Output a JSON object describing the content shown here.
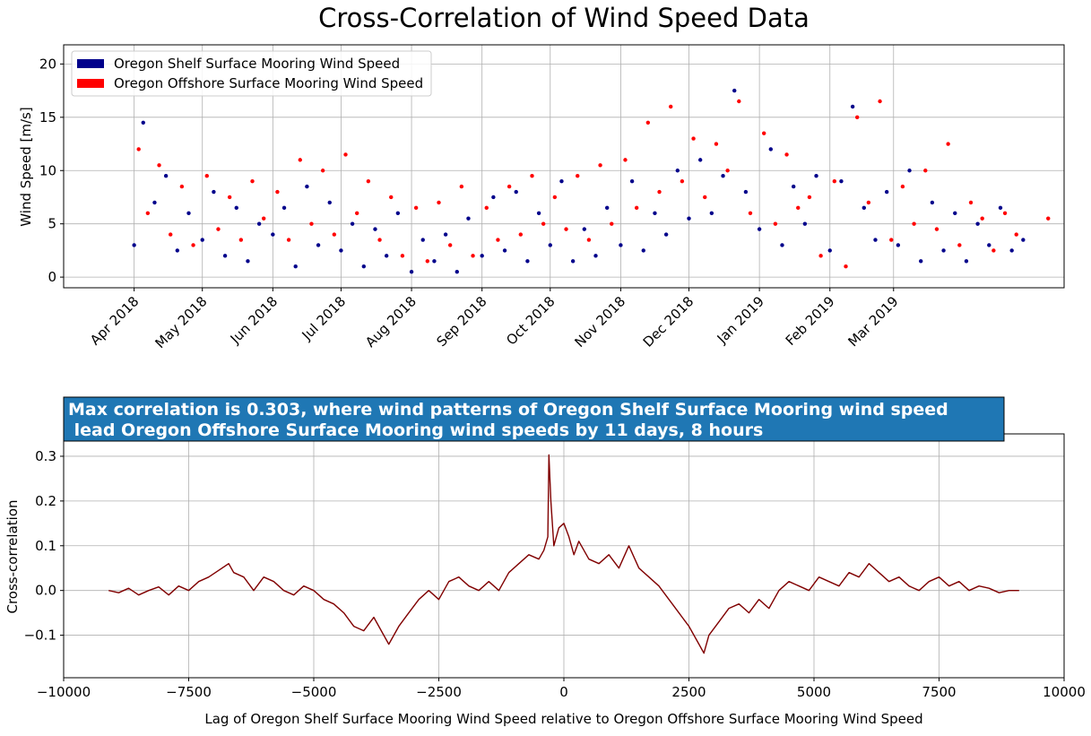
{
  "figure_title": "Cross-Correlation of Wind Speed Data",
  "chart_data": [
    {
      "type": "scatter",
      "title": "",
      "xlabel": "",
      "ylabel": "Wind Speed [m/s]",
      "x_range": [
        "2018-03-01",
        "2019-05-15"
      ],
      "ylim": [
        -1,
        21.8
      ],
      "yticks": [
        0,
        5,
        10,
        15,
        20
      ],
      "xticks": [
        {
          "date": "2018-04-01",
          "label": "Apr 2018"
        },
        {
          "date": "2018-05-01",
          "label": "May 2018"
        },
        {
          "date": "2018-06-01",
          "label": "Jun 2018"
        },
        {
          "date": "2018-07-01",
          "label": "Jul 2018"
        },
        {
          "date": "2018-08-01",
          "label": "Aug 2018"
        },
        {
          "date": "2018-09-01",
          "label": "Sep 2018"
        },
        {
          "date": "2018-10-01",
          "label": "Oct 2018"
        },
        {
          "date": "2018-11-01",
          "label": "Nov 2018"
        },
        {
          "date": "2018-12-01",
          "label": "Dec 2018"
        },
        {
          "date": "2019-01-01",
          "label": "Jan 2019"
        },
        {
          "date": "2019-02-01",
          "label": "Feb 2019"
        },
        {
          "date": "2019-03-01",
          "label": "Mar 2019"
        }
      ],
      "grid": true,
      "legend_position": "top-left",
      "series": [
        {
          "name": "Oregon Shelf Surface Mooring Wind Speed",
          "color": "#00008b",
          "x": [
            "2018-04-01",
            "2018-04-05",
            "2018-04-10",
            "2018-04-15",
            "2018-04-20",
            "2018-04-25",
            "2018-05-01",
            "2018-05-06",
            "2018-05-11",
            "2018-05-16",
            "2018-05-21",
            "2018-05-26",
            "2018-06-01",
            "2018-06-06",
            "2018-06-11",
            "2018-06-16",
            "2018-06-21",
            "2018-06-26",
            "2018-07-01",
            "2018-07-06",
            "2018-07-11",
            "2018-07-16",
            "2018-07-21",
            "2018-07-26",
            "2018-08-01",
            "2018-08-06",
            "2018-08-11",
            "2018-08-16",
            "2018-08-21",
            "2018-08-26",
            "2018-09-01",
            "2018-09-06",
            "2018-09-11",
            "2018-09-16",
            "2018-09-21",
            "2018-09-26",
            "2018-10-01",
            "2018-10-06",
            "2018-10-11",
            "2018-10-16",
            "2018-10-21",
            "2018-10-26",
            "2018-11-01",
            "2018-11-06",
            "2018-11-11",
            "2018-11-16",
            "2018-11-21",
            "2018-11-26",
            "2018-12-01",
            "2018-12-06",
            "2018-12-11",
            "2018-12-16",
            "2018-12-21",
            "2018-12-26",
            "2019-01-01",
            "2019-01-06",
            "2019-01-11",
            "2019-01-16",
            "2019-01-21",
            "2019-01-26",
            "2019-02-01",
            "2019-02-06",
            "2019-02-11",
            "2019-02-16",
            "2019-02-21",
            "2019-02-26",
            "2019-03-03",
            "2019-03-08",
            "2019-03-13",
            "2019-03-18",
            "2019-03-23",
            "2019-03-28",
            "2019-04-02",
            "2019-04-07",
            "2019-04-12",
            "2019-04-17",
            "2019-04-22",
            "2019-04-27"
          ],
          "y": [
            3.0,
            14.5,
            7.0,
            9.5,
            2.5,
            6.0,
            3.5,
            8.0,
            2.0,
            6.5,
            1.5,
            5.0,
            4.0,
            6.5,
            1.0,
            8.5,
            3.0,
            7.0,
            2.5,
            5.0,
            1.0,
            4.5,
            2.0,
            6.0,
            0.5,
            3.5,
            1.5,
            4.0,
            0.5,
            5.5,
            2.0,
            7.5,
            2.5,
            8.0,
            1.5,
            6.0,
            3.0,
            9.0,
            1.5,
            4.5,
            2.0,
            6.5,
            3.0,
            9.0,
            2.5,
            6.0,
            4.0,
            10.0,
            5.5,
            11.0,
            6.0,
            9.5,
            17.5,
            8.0,
            4.5,
            12.0,
            3.0,
            8.5,
            5.0,
            9.5,
            2.5,
            9.0,
            16.0,
            6.5,
            3.5,
            8.0,
            3.0,
            10.0,
            1.5,
            7.0,
            2.5,
            6.0,
            1.5,
            5.0,
            3.0,
            6.5,
            2.5,
            3.5
          ]
        },
        {
          "name": "Oregon Offshore Surface Mooring Wind Speed",
          "color": "#ff0000",
          "x": [
            "2018-04-03",
            "2018-04-07",
            "2018-04-12",
            "2018-04-17",
            "2018-04-22",
            "2018-04-27",
            "2018-05-03",
            "2018-05-08",
            "2018-05-13",
            "2018-05-18",
            "2018-05-23",
            "2018-05-28",
            "2018-06-03",
            "2018-06-08",
            "2018-06-13",
            "2018-06-18",
            "2018-06-23",
            "2018-06-28",
            "2018-07-03",
            "2018-07-08",
            "2018-07-13",
            "2018-07-18",
            "2018-07-23",
            "2018-07-28",
            "2018-08-03",
            "2018-08-08",
            "2018-08-13",
            "2018-08-18",
            "2018-08-23",
            "2018-08-28",
            "2018-09-03",
            "2018-09-08",
            "2018-09-13",
            "2018-09-18",
            "2018-09-23",
            "2018-09-28",
            "2018-10-03",
            "2018-10-08",
            "2018-10-13",
            "2018-10-18",
            "2018-10-23",
            "2018-10-28",
            "2018-11-03",
            "2018-11-08",
            "2018-11-13",
            "2018-11-18",
            "2018-11-23",
            "2018-11-28",
            "2018-12-03",
            "2018-12-08",
            "2018-12-13",
            "2018-12-18",
            "2018-12-23",
            "2018-12-28",
            "2019-01-03",
            "2019-01-08",
            "2019-01-13",
            "2019-01-18",
            "2019-01-23",
            "2019-01-28",
            "2019-02-03",
            "2019-02-08",
            "2019-02-13",
            "2019-02-18",
            "2019-02-23",
            "2019-02-28",
            "2019-03-05",
            "2019-03-10",
            "2019-03-15",
            "2019-03-20",
            "2019-03-25",
            "2019-03-30",
            "2019-04-04",
            "2019-04-09",
            "2019-04-14",
            "2019-04-19",
            "2019-04-24",
            "2019-05-08"
          ],
          "y": [
            12.0,
            6.0,
            10.5,
            4.0,
            8.5,
            3.0,
            9.5,
            4.5,
            7.5,
            3.5,
            9.0,
            5.5,
            8.0,
            3.5,
            11.0,
            5.0,
            10.0,
            4.0,
            11.5,
            6.0,
            9.0,
            3.5,
            7.5,
            2.0,
            6.5,
            1.5,
            7.0,
            3.0,
            8.5,
            2.0,
            6.5,
            3.5,
            8.5,
            4.0,
            9.5,
            5.0,
            7.5,
            4.5,
            9.5,
            3.5,
            10.5,
            5.0,
            11.0,
            6.5,
            14.5,
            8.0,
            16.0,
            9.0,
            13.0,
            7.5,
            12.5,
            10.0,
            16.5,
            6.0,
            13.5,
            5.0,
            11.5,
            6.5,
            7.5,
            2.0,
            9.0,
            1.0,
            15.0,
            7.0,
            16.5,
            3.5,
            8.5,
            5.0,
            10.0,
            4.5,
            12.5,
            3.0,
            7.0,
            5.5,
            2.5,
            6.0,
            4.0,
            5.5
          ]
        }
      ]
    },
    {
      "type": "line",
      "title": "Max correlation is 0.303, where wind patterns of Oregon Shelf Surface Mooring wind speed\n lead Oregon Offshore Surface Mooring wind speeds by 11 days, 8 hours",
      "xlabel": "Lag of Oregon Shelf Surface Mooring Wind Speed relative to Oregon Offshore Surface Mooring Wind Speed",
      "ylabel": "Cross-correlation",
      "xlim": [
        -10000,
        10000
      ],
      "ylim": [
        -0.195,
        0.35
      ],
      "xticks": [
        -10000,
        -7500,
        -5000,
        -2500,
        0,
        2500,
        5000,
        7500,
        10000
      ],
      "yticks": [
        -0.1,
        0.0,
        0.1,
        0.2,
        0.3
      ],
      "xtick_labels": [
        "−10000",
        "−7500",
        "−5000",
        "−2500",
        "0",
        "2500",
        "5000",
        "7500",
        "10000"
      ],
      "ytick_labels": [
        "−0.1",
        "0.0",
        "0.1",
        "0.2",
        "0.3"
      ],
      "grid": true,
      "color": "#800000",
      "title_box_color": "#1f77b4",
      "x": [
        -9100,
        -8900,
        -8700,
        -8500,
        -8300,
        -8100,
        -7900,
        -7700,
        -7500,
        -7300,
        -7100,
        -6900,
        -6700,
        -6600,
        -6400,
        -6200,
        -6000,
        -5800,
        -5600,
        -5400,
        -5200,
        -5000,
        -4800,
        -4600,
        -4400,
        -4200,
        -4000,
        -3800,
        -3600,
        -3500,
        -3300,
        -3100,
        -2900,
        -2700,
        -2500,
        -2300,
        -2100,
        -1900,
        -1700,
        -1500,
        -1300,
        -1100,
        -900,
        -700,
        -500,
        -400,
        -320,
        -300,
        -260,
        -200,
        -100,
        0,
        100,
        200,
        300,
        500,
        700,
        900,
        1100,
        1300,
        1500,
        1700,
        1900,
        2100,
        2300,
        2500,
        2700,
        2800,
        2900,
        3100,
        3300,
        3500,
        3700,
        3900,
        4100,
        4300,
        4500,
        4700,
        4900,
        5100,
        5300,
        5500,
        5700,
        5900,
        6100,
        6300,
        6500,
        6700,
        6900,
        7100,
        7300,
        7500,
        7700,
        7900,
        8100,
        8300,
        8500,
        8700,
        8900,
        9100
      ],
      "y": [
        0.0,
        -0.005,
        0.005,
        -0.01,
        0.0,
        0.008,
        -0.01,
        0.01,
        0.0,
        0.02,
        0.03,
        0.045,
        0.06,
        0.04,
        0.03,
        0.0,
        0.03,
        0.02,
        0.0,
        -0.01,
        0.01,
        0.0,
        -0.02,
        -0.03,
        -0.05,
        -0.08,
        -0.09,
        -0.06,
        -0.1,
        -0.12,
        -0.08,
        -0.05,
        -0.02,
        0.0,
        -0.02,
        0.02,
        0.03,
        0.01,
        0.0,
        0.02,
        0.0,
        0.04,
        0.06,
        0.08,
        0.07,
        0.09,
        0.12,
        0.303,
        0.2,
        0.1,
        0.14,
        0.15,
        0.12,
        0.08,
        0.11,
        0.07,
        0.06,
        0.08,
        0.05,
        0.1,
        0.05,
        0.03,
        0.01,
        -0.02,
        -0.05,
        -0.08,
        -0.12,
        -0.14,
        -0.1,
        -0.07,
        -0.04,
        -0.03,
        -0.05,
        -0.02,
        -0.04,
        0.0,
        0.02,
        0.01,
        0.0,
        0.03,
        0.02,
        0.01,
        0.04,
        0.03,
        0.06,
        0.04,
        0.02,
        0.03,
        0.01,
        0.0,
        0.02,
        0.03,
        0.01,
        0.02,
        0.0,
        0.01,
        0.005,
        -0.005,
        0.0,
        0.0
      ]
    }
  ]
}
